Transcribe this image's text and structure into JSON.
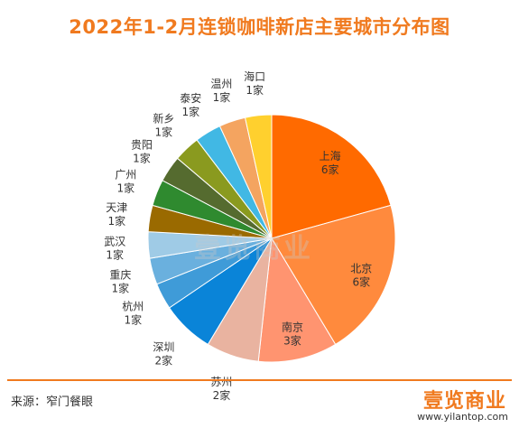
{
  "title": "2022年1-2月连锁咖啡新店主要城市分布图",
  "source": "来源：窄门餐眼",
  "brand": "壹览商业",
  "site": "www.yilantop.com",
  "watermark": "壹览商业",
  "chart_data": {
    "type": "pie",
    "title": "2022年1-2月连锁咖啡新店主要城市分布图",
    "unit": "家",
    "slices": [
      {
        "name": "上海",
        "value": 6,
        "label": "6家",
        "color": "#ff6a00"
      },
      {
        "name": "北京",
        "value": 6,
        "label": "6家",
        "color": "#ff8a3d"
      },
      {
        "name": "南京",
        "value": 3,
        "label": "3家",
        "color": "#ff9470"
      },
      {
        "name": "苏州",
        "value": 2,
        "label": "2家",
        "color": "#e9b3a0"
      },
      {
        "name": "深圳",
        "value": 2,
        "label": "2家",
        "color": "#0a84d8"
      },
      {
        "name": "杭州",
        "value": 1,
        "label": "1家",
        "color": "#3f9bd8"
      },
      {
        "name": "重庆",
        "value": 1,
        "label": "1家",
        "color": "#6ab0de"
      },
      {
        "name": "武汉",
        "value": 1,
        "label": "1家",
        "color": "#9fcbe6"
      },
      {
        "name": "天津",
        "value": 1,
        "label": "1家",
        "color": "#9a6a00"
      },
      {
        "name": "广州",
        "value": 1,
        "label": "1家",
        "color": "#2f8a2f"
      },
      {
        "name": "贵阳",
        "value": 1,
        "label": "1家",
        "color": "#556b2f"
      },
      {
        "name": "新乡",
        "value": 1,
        "label": "1家",
        "color": "#8a9a1f"
      },
      {
        "name": "泰安",
        "value": 1,
        "label": "1家",
        "color": "#41b8e4"
      },
      {
        "name": "温州",
        "value": 1,
        "label": "1家",
        "color": "#f4a460"
      },
      {
        "name": "海口",
        "value": 1,
        "label": "1家",
        "color": "#ffd02e"
      }
    ]
  }
}
